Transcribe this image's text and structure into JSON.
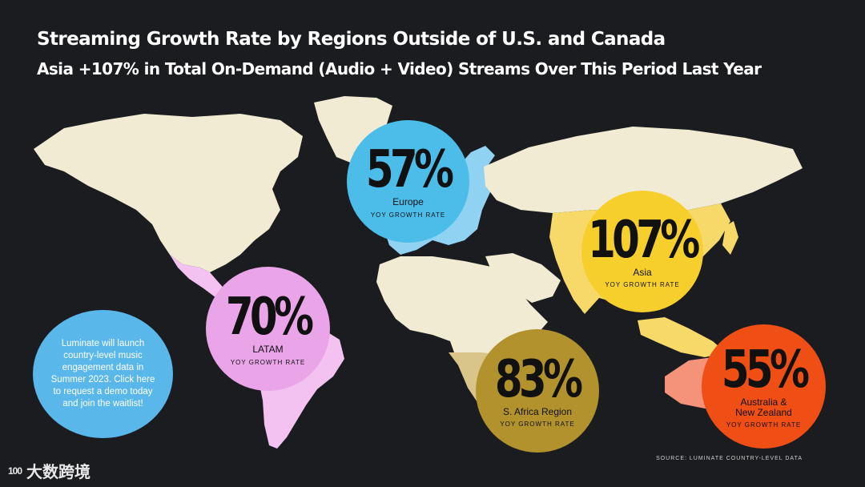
{
  "header": {
    "title": "Streaming Growth Rate by Regions Outside of U.S. and Canada",
    "subtitle": "Asia +107% in Total On-Demand (Audio + Video) Streams Over This Period Last Year"
  },
  "regions": [
    {
      "id": "europe",
      "percent": "57%",
      "name": "Europe",
      "rate_label": "YOY GROWTH RATE",
      "color": "#4cbde9"
    },
    {
      "id": "asia",
      "percent": "107%",
      "name": "Asia",
      "rate_label": "YOY GROWTH RATE",
      "color": "#f6cf2d"
    },
    {
      "id": "latam",
      "percent": "70%",
      "name": "LATAM",
      "rate_label": "YOY GROWTH RATE",
      "color": "#e9a5e8"
    },
    {
      "id": "safrica",
      "percent": "83%",
      "name": "S. Africa Region",
      "rate_label": "YOY GROWTH RATE",
      "color": "#b2922c"
    },
    {
      "id": "anz",
      "percent": "55%",
      "name_line1": "Australia &",
      "name_line2": "New Zealand",
      "rate_label": "YOY GROWTH RATE",
      "color": "#ef4e14"
    }
  ],
  "info_bubble": {
    "text": "Luminate will launch country-level music engagement data in Summer 2023. Click here to request a demo today and join the waitlist!",
    "color": "#5ab7ea"
  },
  "source": "SOURCE: LUMINATE COUNTRY-LEVEL DATA",
  "watermark": {
    "logo": "100",
    "text": "大数跨境"
  },
  "colors": {
    "background": "#1b1c20",
    "land": "#f2ebd3",
    "europe_tint": "#8fd2f2",
    "asia_tint": "#f7d96a",
    "latam_tint": "#f3c2f0",
    "africa_tint": "#d9c48a",
    "anz_tint": "#f5927a"
  }
}
